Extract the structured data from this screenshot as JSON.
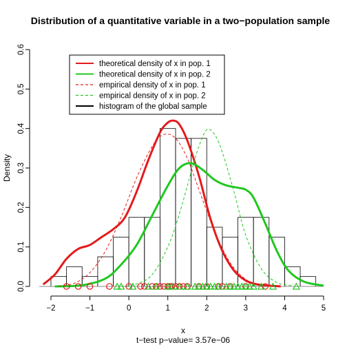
{
  "chart_data": {
    "type": "histogram",
    "title": "Distribution of a quantitative variable in a two−population sample",
    "xlabel": "x",
    "ylabel": "Density",
    "subtitle": "t−test p−value= 3.57e−06",
    "xlim": [
      -2.3,
      5.0
    ],
    "ylim": [
      0,
      0.6
    ],
    "x_ticks": [
      {
        "value": -2,
        "label": "−2"
      },
      {
        "value": -1,
        "label": "−1"
      },
      {
        "value": 0,
        "label": "0"
      },
      {
        "value": 1,
        "label": "1"
      },
      {
        "value": 2,
        "label": "2"
      },
      {
        "value": 3,
        "label": "3"
      },
      {
        "value": 4,
        "label": "4"
      },
      {
        "value": 5,
        "label": "5"
      }
    ],
    "y_ticks": [
      {
        "value": 0.0,
        "label": "0.0"
      },
      {
        "value": 0.1,
        "label": "0.1"
      },
      {
        "value": 0.2,
        "label": "0.2"
      },
      {
        "value": 0.3,
        "label": "0.3"
      },
      {
        "value": 0.4,
        "label": "0.4"
      },
      {
        "value": 0.5,
        "label": "0.5"
      },
      {
        "value": 0.6,
        "label": "0.6"
      }
    ],
    "grid": false,
    "legend_position": "top-left",
    "histogram": {
      "bins": [
        {
          "x0": -2.0,
          "x1": -1.6,
          "density": 0.025
        },
        {
          "x0": -1.6,
          "x1": -1.2,
          "density": 0.05
        },
        {
          "x0": -1.2,
          "x1": -0.8,
          "density": 0.025
        },
        {
          "x0": -0.8,
          "x1": -0.4,
          "density": 0.075
        },
        {
          "x0": -0.4,
          "x1": 0.0,
          "density": 0.125
        },
        {
          "x0": 0.0,
          "x1": 0.4,
          "density": 0.175
        },
        {
          "x0": 0.4,
          "x1": 0.8,
          "density": 0.175
        },
        {
          "x0": 0.8,
          "x1": 1.2,
          "density": 0.4
        },
        {
          "x0": 1.2,
          "x1": 1.6,
          "density": 0.375
        },
        {
          "x0": 1.6,
          "x1": 2.0,
          "density": 0.375
        },
        {
          "x0": 2.0,
          "x1": 2.4,
          "density": 0.15
        },
        {
          "x0": 2.4,
          "x1": 2.8,
          "density": 0.125
        },
        {
          "x0": 2.8,
          "x1": 3.2,
          "density": 0.175
        },
        {
          "x0": 3.2,
          "x1": 3.6,
          "density": 0.175
        },
        {
          "x0": 3.6,
          "x1": 4.0,
          "density": 0.125
        },
        {
          "x0": 4.0,
          "x1": 4.4,
          "density": 0.05
        },
        {
          "x0": 4.4,
          "x1": 4.8,
          "density": 0.025
        }
      ]
    },
    "series": [
      {
        "name": "theoretical density of x in pop. 1",
        "style": "solid",
        "color": "#e31a1c",
        "x": [
          -2.2,
          -1.9,
          -1.6,
          -1.3,
          -1.0,
          -0.7,
          -0.4,
          -0.1,
          0.2,
          0.5,
          0.8,
          1.0,
          1.15,
          1.3,
          1.5,
          1.8,
          2.1,
          2.4,
          2.7,
          3.0,
          3.3,
          3.6,
          3.9
        ],
        "y": [
          0.005,
          0.03,
          0.07,
          0.095,
          0.105,
          0.125,
          0.145,
          0.175,
          0.24,
          0.32,
          0.39,
          0.415,
          0.42,
          0.41,
          0.37,
          0.28,
          0.17,
          0.09,
          0.04,
          0.015,
          0.005,
          0.002,
          0.0
        ]
      },
      {
        "name": "theoretical density of x in pop. 2",
        "style": "solid",
        "color": "#1ec81e",
        "x": [
          -1.9,
          -1.2,
          -0.6,
          -0.2,
          0.2,
          0.6,
          1.0,
          1.3,
          1.6,
          1.9,
          2.2,
          2.5,
          2.8,
          3.0,
          3.2,
          3.5,
          3.8,
          4.1,
          4.5,
          5.0
        ],
        "y": [
          0.0,
          0.003,
          0.02,
          0.055,
          0.105,
          0.18,
          0.255,
          0.3,
          0.312,
          0.295,
          0.27,
          0.256,
          0.25,
          0.245,
          0.225,
          0.16,
          0.09,
          0.04,
          0.012,
          0.002
        ]
      },
      {
        "name": "empirical density of x in pop. 1",
        "style": "dashed",
        "color": "#e31a1c",
        "x": [
          -1.8,
          -1.4,
          -1.0,
          -0.6,
          -0.2,
          0.2,
          0.6,
          0.9,
          1.2,
          1.5,
          1.8,
          2.2,
          2.6,
          3.0,
          3.4,
          3.8
        ],
        "y": [
          0.001,
          0.008,
          0.035,
          0.09,
          0.175,
          0.275,
          0.355,
          0.385,
          0.375,
          0.325,
          0.245,
          0.14,
          0.06,
          0.018,
          0.004,
          0.001
        ]
      },
      {
        "name": "empirical density of x in pop. 2",
        "style": "dashed",
        "color": "#1ec81e",
        "x": [
          -0.2,
          0.2,
          0.6,
          1.0,
          1.3,
          1.6,
          1.8,
          2.0,
          2.2,
          2.4,
          2.7,
          3.0,
          3.4,
          3.8,
          4.2
        ],
        "y": [
          0.0,
          0.006,
          0.03,
          0.1,
          0.185,
          0.29,
          0.355,
          0.397,
          0.385,
          0.34,
          0.24,
          0.13,
          0.045,
          0.01,
          0.002
        ]
      }
    ],
    "legend_entries": [
      {
        "label": "theoretical density of x in pop. 1",
        "color": "#e31a1c",
        "style": "solid"
      },
      {
        "label": "theoretical density of x in pop. 2",
        "color": "#1ec81e",
        "style": "solid"
      },
      {
        "label": "empirical density of x in pop. 1",
        "color": "#e31a1c",
        "style": "dashed"
      },
      {
        "label": "empirical density of x in pop. 2",
        "color": "#1ec81e",
        "style": "dashed"
      },
      {
        "label": "histogram of the global sample",
        "color": "#000000",
        "style": "solid"
      }
    ],
    "rug": {
      "pop1_circles": {
        "color": "#e31a1c",
        "x": [
          -1.6,
          -1.3,
          -1.0,
          -0.5,
          0.0,
          0.3,
          0.4,
          0.6,
          0.7,
          0.8,
          0.9,
          1.0,
          1.05,
          1.1,
          1.2,
          1.3,
          1.4,
          1.5,
          1.8,
          2.0,
          2.3,
          2.4,
          2.6,
          3.0,
          3.5
        ]
      },
      "pop2_triangles": {
        "color": "#1ec81e",
        "x": [
          -0.3,
          -0.2,
          0.1,
          0.5,
          0.7,
          1.0,
          1.1,
          1.3,
          1.5,
          1.7,
          1.8,
          1.9,
          2.0,
          2.1,
          2.2,
          2.3,
          2.5,
          2.6,
          2.7,
          2.8,
          2.9,
          3.0,
          3.1,
          3.2,
          3.4,
          3.7,
          4.3
        ]
      }
    }
  }
}
